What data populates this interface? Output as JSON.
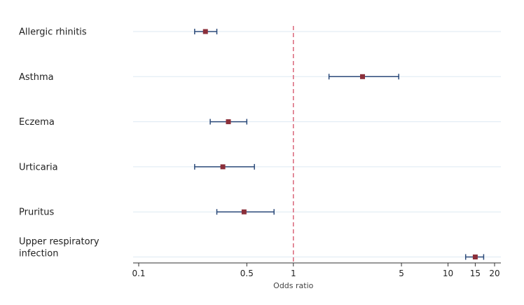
{
  "chart_data": {
    "type": "forest",
    "xlabel": "Odds ratio",
    "xscale": "log",
    "xlim": [
      0.1,
      20
    ],
    "xticks": [
      0.1,
      0.5,
      1,
      5,
      10,
      15,
      20
    ],
    "xtick_labels": [
      "0.1",
      "0.5",
      "1",
      "5",
      "10",
      "15",
      "20"
    ],
    "reference_line": 1,
    "grid": "horizontal",
    "colors": {
      "point": "#8b2f3a",
      "ci": "#2b4a7a",
      "reference": "#d9667a",
      "grid": "#dde9f2"
    },
    "rows": [
      {
        "label": "Allergic rhinitis",
        "or": 0.27,
        "ci_low": 0.23,
        "ci_high": 0.32
      },
      {
        "label": "Asthma",
        "or": 2.8,
        "ci_low": 1.7,
        "ci_high": 4.8
      },
      {
        "label": "Eczema",
        "or": 0.38,
        "ci_low": 0.29,
        "ci_high": 0.5
      },
      {
        "label": "Urticaria",
        "or": 0.35,
        "ci_low": 0.23,
        "ci_high": 0.56
      },
      {
        "label": "Pruritus",
        "or": 0.48,
        "ci_low": 0.32,
        "ci_high": 0.75
      },
      {
        "label": "Upper respiratory\ninfection",
        "or": 15,
        "ci_low": 13,
        "ci_high": 17
      }
    ]
  }
}
